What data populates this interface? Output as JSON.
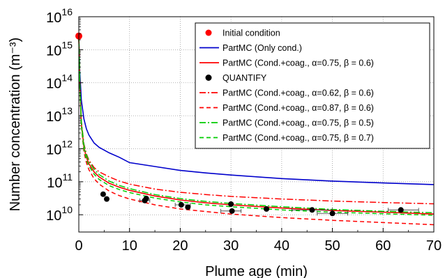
{
  "chart_data": {
    "type": "line",
    "xlabel": "Plume age (min)",
    "ylabel": "Number concentration (m⁻³)",
    "xlim": [
      0,
      70
    ],
    "ylim": [
      3000000000,
      10000000000000000
    ],
    "y_scale": "log",
    "grid": true,
    "legend_position": "top-right",
    "x_ticks": [
      "0",
      "10",
      "20",
      "30",
      "40",
      "50",
      "60",
      "70"
    ],
    "y_ticks": [
      {
        "base": "10",
        "exp": "10",
        "value": 10000000000
      },
      {
        "base": "10",
        "exp": "11",
        "value": 100000000000
      },
      {
        "base": "10",
        "exp": "12",
        "value": 1000000000000
      },
      {
        "base": "10",
        "exp": "13",
        "value": 10000000000000
      },
      {
        "base": "10",
        "exp": "14",
        "value": 100000000000000
      },
      {
        "base": "10",
        "exp": "15",
        "value": 1000000000000000
      },
      {
        "base": "10",
        "exp": "16",
        "value": 10000000000000000
      }
    ],
    "initial_condition": {
      "name": "Initial condition",
      "color": "#ff0000",
      "x": 0,
      "y": 2600000000000000
    },
    "series": [
      {
        "name": "PartMC (Only cond.)",
        "color": "#0000cc",
        "dash": "solid",
        "x": [
          0,
          0.2,
          0.5,
          1,
          1.5,
          2,
          3,
          4,
          6,
          8,
          10,
          15,
          20,
          25,
          30,
          40,
          50,
          60,
          70
        ],
        "values": [
          2600000000000000,
          200000000000000,
          30000000000000,
          8000000000000,
          4000000000000,
          2600000000000,
          1500000000000,
          1100000000000,
          750000000000,
          550000000000,
          380000000000,
          290000000000,
          220000000000,
          185000000000,
          160000000000,
          125000000000,
          105000000000,
          92000000000,
          82000000000
        ]
      },
      {
        "name": "PartMC (Cond.+coag., α=0.75, β = 0.6)",
        "color": "#ff0000",
        "dash": "solid",
        "x": [
          0,
          0.2,
          0.5,
          1,
          1.5,
          2,
          3,
          4,
          6,
          8,
          10,
          15,
          20,
          25,
          30,
          40,
          50,
          60,
          70
        ],
        "values": [
          2600000000000000,
          80000000000000,
          6000000000000,
          1100000000000,
          550000000000,
          350000000000,
          200000000000,
          140000000000,
          90000000000,
          68000000000,
          55000000000,
          37000000000,
          28000000000,
          23000000000,
          20000000000,
          16000000000,
          13500000000,
          12000000000,
          10500000000
        ]
      },
      {
        "name": "PartMC (Cond.+coag., α=0.62, β = 0.6)",
        "color": "#ff0000",
        "dash": "dashdot",
        "x": [
          0,
          0.2,
          0.5,
          1,
          1.5,
          2,
          3,
          4,
          6,
          8,
          10,
          15,
          20,
          25,
          30,
          40,
          50,
          60,
          70
        ],
        "values": [
          2600000000000000,
          90000000000000,
          7000000000000,
          1400000000000,
          700000000000,
          450000000000,
          270000000000,
          200000000000,
          140000000000,
          105000000000,
          85000000000,
          60000000000,
          48000000000,
          41000000000,
          36000000000,
          30000000000,
          26000000000,
          23500000000,
          21500000000
        ]
      },
      {
        "name": "PartMC (Cond.+coag., α=0.87, β = 0.6)",
        "color": "#ff0000",
        "dash": "dashed",
        "x": [
          0,
          0.2,
          0.5,
          1,
          1.5,
          2,
          3,
          4,
          6,
          8,
          10,
          15,
          20,
          25,
          30,
          40,
          50,
          60,
          70
        ],
        "values": [
          2600000000000000,
          70000000000000,
          5000000000000,
          800000000000,
          380000000000,
          230000000000,
          125000000000,
          85000000000,
          52000000000,
          38000000000,
          30000000000,
          20000000000,
          15000000000,
          12500000000,
          10500000000,
          8200000000,
          6800000000,
          5800000000,
          5000000000
        ]
      },
      {
        "name": "PartMC (Cond.+coag., α=0.75, β = 0.5)",
        "color": "#00cc00",
        "dash": "dashdot",
        "x": [
          0,
          0.2,
          0.5,
          1,
          1.5,
          2,
          3,
          4,
          6,
          8,
          10,
          15,
          20,
          25,
          30,
          40,
          50,
          60,
          70
        ],
        "values": [
          2600000000000000,
          85000000000000,
          6500000000000,
          1300000000000,
          650000000000,
          420000000000,
          240000000000,
          165000000000,
          105000000000,
          77000000000,
          62000000000,
          41000000000,
          31000000000,
          25500000000,
          22000000000,
          17500000000,
          14500000000,
          12800000000,
          11500000000
        ]
      },
      {
        "name": "PartMC (Cond.+coag., α=0.75, β = 0.7)",
        "color": "#00cc00",
        "dash": "dashed",
        "x": [
          0,
          0.2,
          0.5,
          1,
          1.5,
          2,
          3,
          4,
          6,
          8,
          10,
          15,
          20,
          25,
          30,
          40,
          50,
          60,
          70
        ],
        "values": [
          2600000000000000,
          75000000000000,
          5500000000000,
          950000000000,
          470000000000,
          300000000000,
          170000000000,
          118000000000,
          76000000000,
          58000000000,
          47000000000,
          32000000000,
          24500000000,
          20000000000,
          17500000000,
          14000000000,
          12000000000,
          10700000000,
          9700000000
        ]
      }
    ],
    "observations": {
      "name": "QUANTIFY",
      "color": "#000000",
      "points": [
        {
          "x": 4.8,
          "y": 42000000000
        },
        {
          "x": 5.5,
          "y": 30000000000
        },
        {
          "x": 13.0,
          "y": 27000000000
        },
        {
          "x": 13.3,
          "y": 31000000000
        },
        {
          "x": 20.2,
          "y": 20000000000
        },
        {
          "x": 21.5,
          "y": 17000000000
        },
        {
          "x": 30.0,
          "y": 21000000000
        },
        {
          "x": 30.2,
          "y": 13000000000
        },
        {
          "x": 37.0,
          "y": 15000000000
        },
        {
          "x": 46.0,
          "y": 14000000000
        },
        {
          "x": 50.0,
          "y": 11000000000
        },
        {
          "x": 63.5,
          "y": 14000000000
        }
      ],
      "x_error": [
        {
          "x": 13.0,
          "y": 27000000000,
          "lo": 12.0,
          "hi": 14.0
        },
        {
          "x": 20.2,
          "y": 20000000000,
          "lo": 19.0,
          "hi": 22.0
        },
        {
          "x": 30.2,
          "y": 13000000000,
          "lo": 28.0,
          "hi": 32.0
        },
        {
          "x": 46.0,
          "y": 14000000000,
          "lo": 42.0,
          "hi": 50.0
        },
        {
          "x": 50.0,
          "y": 11000000000,
          "lo": 47.0,
          "hi": 53.0
        },
        {
          "x": 63.5,
          "y": 14000000000,
          "lo": 61.0,
          "hi": 67.0
        }
      ]
    },
    "legend": [
      {
        "type": "marker",
        "label": "Initial condition",
        "color": "#ff0000"
      },
      {
        "type": "line",
        "label": "PartMC (Only cond.)",
        "color": "#0000cc",
        "dash": "solid"
      },
      {
        "type": "line",
        "label": "PartMC (Cond.+coag., α=0.75, β = 0.6)",
        "color": "#ff0000",
        "dash": "solid"
      },
      {
        "type": "marker",
        "label": "QUANTIFY",
        "color": "#000000"
      },
      {
        "type": "line",
        "label": "PartMC (Cond.+coag., α=0.62, β = 0.6)",
        "color": "#ff0000",
        "dash": "dashdot"
      },
      {
        "type": "line",
        "label": "PartMC (Cond.+coag., α=0.87, β = 0.6)",
        "color": "#ff0000",
        "dash": "dashed"
      },
      {
        "type": "line",
        "label": "PartMC (Cond.+coag., α=0.75, β = 0.5)",
        "color": "#00cc00",
        "dash": "dashdot"
      },
      {
        "type": "line",
        "label": "PartMC (Cond.+coag., α=0.75, β = 0.7)",
        "color": "#00cc00",
        "dash": "dashed"
      }
    ]
  }
}
